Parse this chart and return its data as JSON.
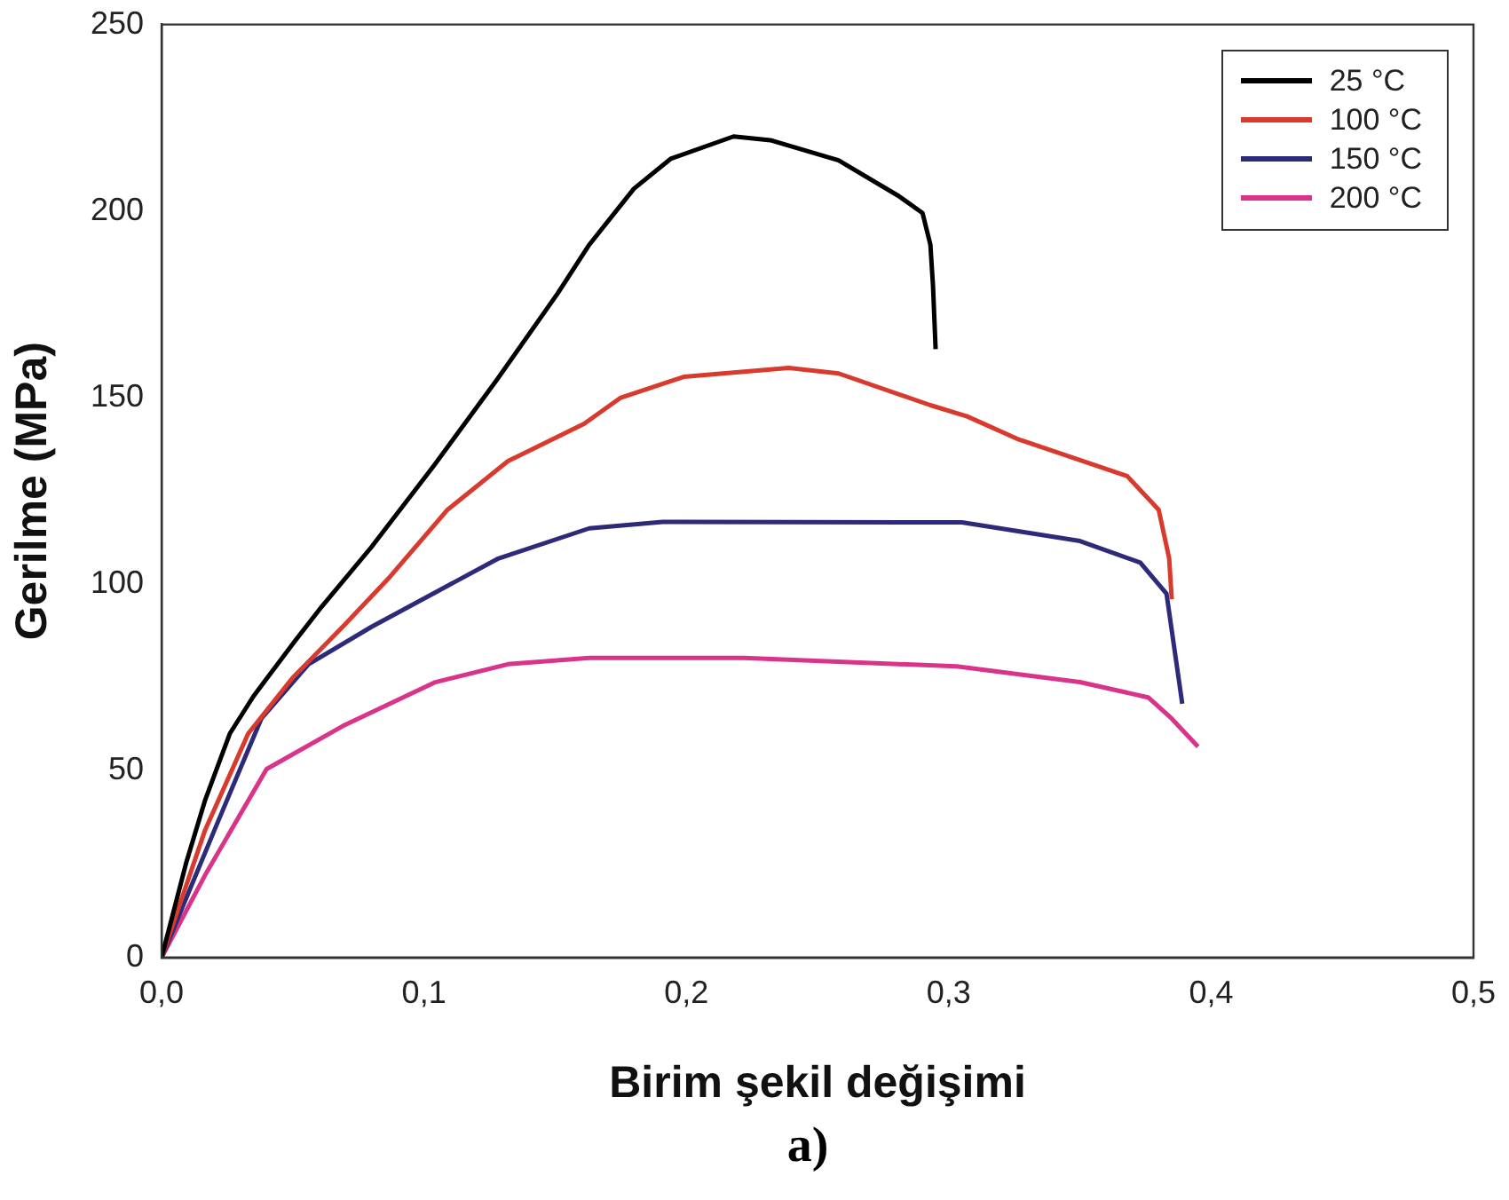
{
  "chart_data": {
    "type": "line",
    "xlabel": "Birim şekil değişimi",
    "ylabel": "Gerilme (MPa)",
    "annotations": [
      "a)"
    ],
    "xlim": [
      0,
      0.5
    ],
    "xticks": [
      {
        "value": 0,
        "label": "0,0"
      },
      {
        "value": 0.1,
        "label": "0,1"
      },
      {
        "value": 0.2,
        "label": "0,2"
      },
      {
        "value": 0.3,
        "label": "0,3"
      },
      {
        "value": 0.4,
        "label": "0,4"
      },
      {
        "value": 0.5,
        "label": "0,5"
      }
    ],
    "ylim": [
      0,
      250
    ],
    "yticks": [
      0,
      50,
      100,
      150,
      200,
      250
    ],
    "grid": false,
    "legend": "top right",
    "marker": "none",
    "line_style": "solid",
    "series": [
      {
        "name": "25 °C",
        "color": "#000000",
        "x": [
          0,
          0.0095,
          0.0165,
          0.026,
          0.035,
          0.051,
          0.061,
          0.08,
          0.104,
          0.128,
          0.151,
          0.163,
          0.18,
          0.194,
          0.218,
          0.232,
          0.258,
          0.281,
          0.29,
          0.293,
          0.294,
          0.295
        ],
        "values": [
          0,
          25.7,
          42,
          60,
          70,
          85,
          94,
          110,
          132,
          155,
          178,
          191,
          206,
          214,
          220,
          219,
          213.6,
          204,
          199.5,
          191,
          180,
          163
        ]
      },
      {
        "name": "100 °C",
        "color": "#d83a2e",
        "x": [
          0,
          0.0165,
          0.033,
          0.05,
          0.069,
          0.087,
          0.109,
          0.132,
          0.161,
          0.175,
          0.199,
          0.239,
          0.258,
          0.293,
          0.307,
          0.326,
          0.368,
          0.38,
          0.384,
          0.385
        ],
        "values": [
          0,
          34,
          60,
          75,
          88.6,
          102,
          120,
          133,
          143,
          150,
          155.6,
          158,
          156.5,
          148,
          145,
          139,
          129,
          120,
          107,
          96
        ]
      },
      {
        "name": "150 °C",
        "color": "#2e2a7a",
        "x": [
          0,
          0.021,
          0.038,
          0.056,
          0.08,
          0.104,
          0.128,
          0.163,
          0.191,
          0.305,
          0.35,
          0.373,
          0.383,
          0.389
        ],
        "values": [
          0,
          35.6,
          64,
          78.6,
          88.6,
          97.7,
          106.8,
          115,
          116.7,
          116.6,
          111.6,
          105.8,
          97.5,
          68
        ]
      },
      {
        "name": "200 °C",
        "color": "#d9338a",
        "x": [
          0,
          0.0165,
          0.04,
          0.069,
          0.104,
          0.132,
          0.163,
          0.222,
          0.303,
          0.35,
          0.376,
          0.385,
          0.395
        ],
        "values": [
          0,
          22,
          50.5,
          62,
          73.7,
          78.6,
          80.3,
          80.3,
          78,
          73.8,
          69.7,
          64,
          56.5
        ]
      }
    ]
  }
}
